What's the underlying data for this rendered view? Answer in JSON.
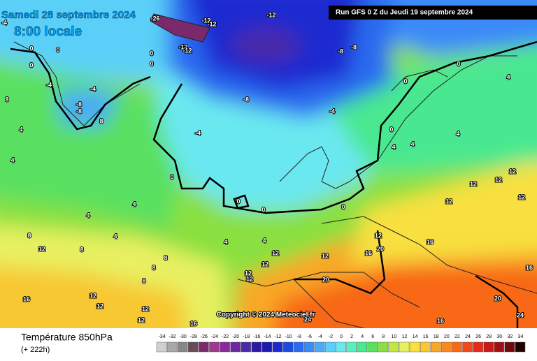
{
  "header": {
    "date": "Samedi 28 septembre 2024",
    "time": "8:00 locale",
    "run": "Run GFS 0 Z du Jeudi 19 septembre 2024"
  },
  "copyright": "Copyright © 2024 Meteociel.fr",
  "footer": {
    "title": "Température 850hPa",
    "lead": "(+ 222h)"
  },
  "legend": {
    "levels": [
      {
        "value": -34,
        "color": "#d0d0d0"
      },
      {
        "value": -32,
        "color": "#a8a8a8"
      },
      {
        "value": -30,
        "color": "#888888"
      },
      {
        "value": -28,
        "color": "#6a4a5a"
      },
      {
        "value": -26,
        "color": "#7a2a6a"
      },
      {
        "value": -24,
        "color": "#9a3a8a"
      },
      {
        "value": -22,
        "color": "#8a2a9a"
      },
      {
        "value": -20,
        "color": "#6a28a0"
      },
      {
        "value": -18,
        "color": "#4a2aa8"
      },
      {
        "value": -16,
        "color": "#2a1aa0"
      },
      {
        "value": -14,
        "color": "#1a1ab0"
      },
      {
        "value": -12,
        "color": "#1a2ad0"
      },
      {
        "value": -10,
        "color": "#1a4ae0"
      },
      {
        "value": -8,
        "color": "#2a6af0"
      },
      {
        "value": -6,
        "color": "#3a8af8"
      },
      {
        "value": -4,
        "color": "#4aaaf8"
      },
      {
        "value": -2,
        "color": "#5ad0f8"
      },
      {
        "value": 0,
        "color": "#6ae8f0"
      },
      {
        "value": 2,
        "color": "#5af0c0"
      },
      {
        "value": 4,
        "color": "#4ae890"
      },
      {
        "value": 6,
        "color": "#5ae060"
      },
      {
        "value": 8,
        "color": "#8ae040"
      },
      {
        "value": 10,
        "color": "#c0e840"
      },
      {
        "value": 12,
        "color": "#e8f060"
      },
      {
        "value": 14,
        "color": "#f8e040"
      },
      {
        "value": 16,
        "color": "#f8c830"
      },
      {
        "value": 18,
        "color": "#f8a828"
      },
      {
        "value": 20,
        "color": "#f88820"
      },
      {
        "value": 22,
        "color": "#f86818"
      },
      {
        "value": 24,
        "color": "#f04818"
      },
      {
        "value": 26,
        "color": "#e82818"
      },
      {
        "value": 28,
        "color": "#c81818"
      },
      {
        "value": 30,
        "color": "#a01010"
      },
      {
        "value": 32,
        "color": "#700808"
      },
      {
        "value": 34,
        "color": "#200000"
      }
    ]
  },
  "map_labels": [
    -4,
    -26,
    -12,
    -12,
    -12,
    -12,
    -12,
    -8,
    -8,
    0,
    0,
    0,
    0,
    0,
    -4,
    -4,
    -8,
    -8,
    8,
    8,
    4,
    4,
    -4,
    -8,
    -4,
    0,
    0,
    4,
    4,
    4,
    4,
    0,
    0,
    0,
    0,
    0,
    4,
    4,
    4,
    4,
    4,
    8,
    12,
    8,
    8,
    8,
    8,
    12,
    12,
    12,
    12,
    12,
    16,
    20,
    16,
    20,
    16,
    12,
    12,
    12,
    12,
    16,
    16,
    24,
    20,
    24,
    16,
    12,
    12,
    12,
    12,
    12,
    12
  ]
}
